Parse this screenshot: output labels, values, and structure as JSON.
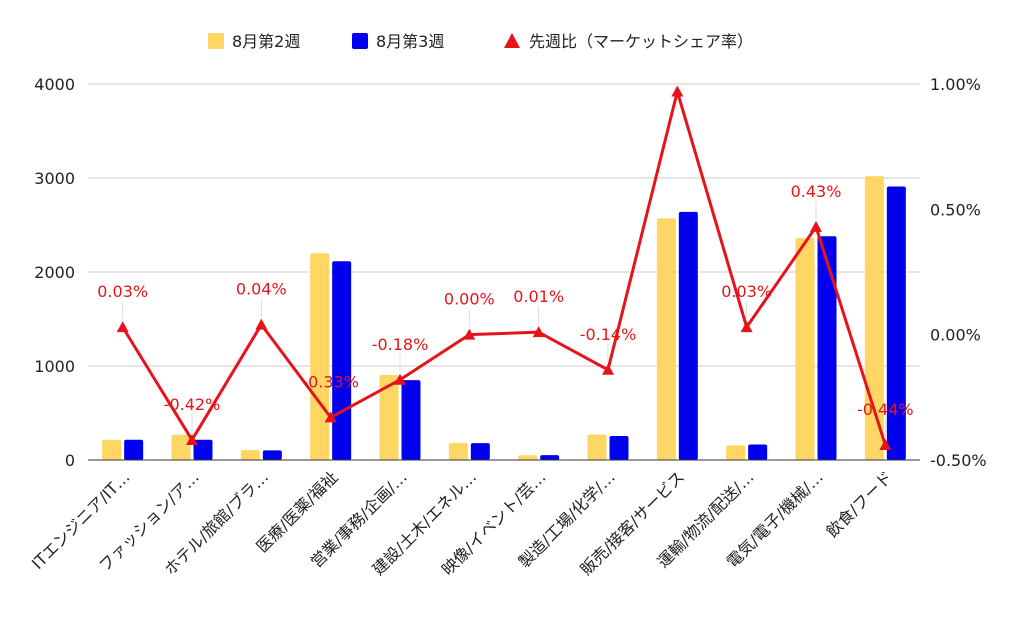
{
  "chart_data": {
    "type": "bar",
    "categories": [
      "ITエンジニア/IT…",
      "ファッション/ア…",
      "ホテル/旅館/ブラ…",
      "医療/医薬/福祉",
      "営業/事務/企画/…",
      "建設/土木/エネル…",
      "映像/イベント/芸…",
      "製造/工場/化学/…",
      "販売/接客/サービス",
      "運輸/物流/配送/…",
      "電気/電子/機械/…",
      "飲食/フード"
    ],
    "series": [
      {
        "name": "8月第2週",
        "type": "bar",
        "axis": "left",
        "color": "#fdd663",
        "values": [
          215,
          268,
          105,
          2200,
          905,
          180,
          50,
          270,
          2570,
          155,
          2360,
          3020
        ]
      },
      {
        "name": "8月第3週",
        "type": "bar",
        "axis": "left",
        "color": "#0000ee",
        "values": [
          215,
          215,
          102,
          2115,
          850,
          180,
          52,
          255,
          2640,
          165,
          2380,
          2910
        ]
      },
      {
        "name": "先週比（マーケットシェア率）",
        "type": "line",
        "axis": "right",
        "color": "#e6141a",
        "values": [
          0.03,
          -0.42,
          0.04,
          -0.33,
          -0.18,
          0.0,
          0.01,
          -0.14,
          0.97,
          0.03,
          0.43,
          -0.44
        ],
        "labels": [
          "0.03%",
          "-0.42%",
          "0.04%",
          "-0.33%",
          "-0.18%",
          "0.00%",
          "0.01%",
          "-0.14%",
          "",
          "0.03%",
          "0.43%",
          "-0.44%"
        ]
      }
    ],
    "y_left": {
      "ticks": [
        0,
        1000,
        2000,
        3000,
        4000
      ],
      "ylim": [
        0,
        4000
      ]
    },
    "y_right": {
      "ticks": [
        "-0.50%",
        "0.00%",
        "0.50%",
        "1.00%"
      ],
      "tick_values": [
        -0.5,
        0,
        0.5,
        1.0
      ],
      "ylim": [
        -0.5,
        1.0
      ]
    },
    "legend": {
      "position": "top"
    },
    "grid": true
  }
}
